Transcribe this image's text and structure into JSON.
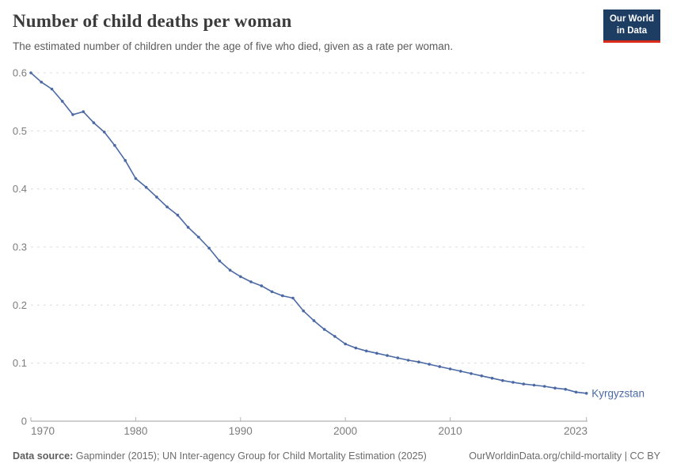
{
  "header": {
    "title": "Number of child deaths per woman",
    "subtitle": "The estimated number of children under the age of five who died, given as a rate per woman."
  },
  "logo": {
    "line1": "Our World",
    "line2": "in Data",
    "bg_color": "#1d3d63",
    "accent_color": "#d92a1a"
  },
  "chart_data": {
    "type": "line",
    "title": "Number of child deaths per woman",
    "xlabel": "",
    "ylabel": "",
    "grid": true,
    "legend_position": "end-of-line",
    "ylim": [
      0,
      0.6
    ],
    "y_ticks": [
      0,
      0.1,
      0.2,
      0.3,
      0.4,
      0.5,
      0.6
    ],
    "x_ticks": [
      1970,
      1980,
      1990,
      2000,
      2010,
      2023
    ],
    "x_tick_labels": [
      "1970",
      "1980",
      "1990",
      "2000",
      "2010",
      "2023"
    ],
    "x": [
      1970,
      1971,
      1972,
      1973,
      1974,
      1975,
      1976,
      1977,
      1978,
      1979,
      1980,
      1981,
      1982,
      1983,
      1984,
      1985,
      1986,
      1987,
      1988,
      1989,
      1990,
      1991,
      1992,
      1993,
      1994,
      1995,
      1996,
      1997,
      1998,
      1999,
      2000,
      2001,
      2002,
      2003,
      2004,
      2005,
      2006,
      2007,
      2008,
      2009,
      2010,
      2011,
      2012,
      2013,
      2014,
      2015,
      2016,
      2017,
      2018,
      2019,
      2020,
      2021,
      2022,
      2023
    ],
    "series": [
      {
        "name": "Kyrgyzstan",
        "color": "#4b69a4",
        "values": [
          0.6,
          0.584,
          0.572,
          0.551,
          0.528,
          0.533,
          0.514,
          0.498,
          0.475,
          0.449,
          0.418,
          0.403,
          0.386,
          0.369,
          0.355,
          0.334,
          0.317,
          0.298,
          0.276,
          0.26,
          0.249,
          0.24,
          0.233,
          0.223,
          0.216,
          0.212,
          0.19,
          0.173,
          0.158,
          0.146,
          0.133,
          0.126,
          0.121,
          0.117,
          0.113,
          0.109,
          0.105,
          0.102,
          0.098,
          0.094,
          0.09,
          0.086,
          0.082,
          0.078,
          0.074,
          0.07,
          0.067,
          0.064,
          0.062,
          0.06,
          0.057,
          0.055,
          0.05,
          0.048
        ]
      }
    ],
    "colors": {
      "gridline": "#dcdcdc",
      "axis": "#9d9d9d",
      "tick_label": "#7c7c7c"
    }
  },
  "footer": {
    "source_label": "Data source:",
    "source_text": "Gapminder (2015); UN Inter-agency Group for Child Mortality Estimation (2025)",
    "url_text": "OurWorldinData.org/child-mortality | CC BY"
  }
}
